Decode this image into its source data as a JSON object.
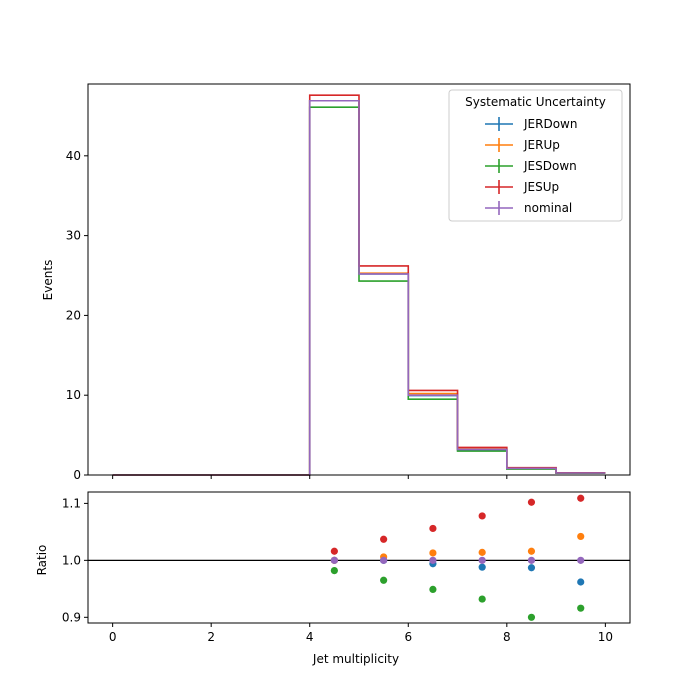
{
  "chart_data": {
    "type": "histogram_with_ratio",
    "xlabel": "Jet multiplicity",
    "top_ylabel": "Events",
    "bottom_ylabel": "Ratio",
    "xlim": [
      -0.5,
      10.5
    ],
    "top_ylim": [
      0,
      49
    ],
    "bottom_ylim": [
      0.89,
      1.12
    ],
    "x_ticks": [
      0,
      2,
      4,
      6,
      8,
      10
    ],
    "top_y_ticks": [
      0,
      10,
      20,
      30,
      40
    ],
    "bottom_y_ticks": [
      0.9,
      1.0,
      1.1
    ],
    "bin_edges": [
      0,
      1,
      2,
      3,
      4,
      5,
      6,
      7,
      8,
      9,
      10
    ],
    "legend": {
      "title": "Systematic Uncertainty",
      "placement": "top-right"
    },
    "ratio_reference_line": 1.0,
    "series": [
      {
        "name": "JERDown",
        "color": "#1f77b4",
        "counts": [
          0,
          0,
          0,
          0,
          46.9,
          25.2,
          9.95,
          3.15,
          0.82,
          0.24
        ],
        "ratio_x": [
          4.5,
          5.5,
          6.5,
          7.5,
          8.5,
          9.5
        ],
        "ratio": [
          1.0,
          1.0,
          0.994,
          0.988,
          0.987,
          0.962
        ]
      },
      {
        "name": "JERUp",
        "color": "#ff7f0e",
        "counts": [
          0,
          0,
          0,
          0,
          46.9,
          25.3,
          10.2,
          3.25,
          0.85,
          0.26
        ],
        "ratio_x": [
          4.5,
          5.5,
          6.5,
          7.5,
          8.5,
          9.5
        ],
        "ratio": [
          1.0,
          1.006,
          1.013,
          1.014,
          1.016,
          1.042
        ]
      },
      {
        "name": "JESDown",
        "color": "#2ca02c",
        "counts": [
          0,
          0,
          0,
          0,
          46.1,
          24.3,
          9.5,
          3.0,
          0.75,
          0.23
        ],
        "ratio_x": [
          4.5,
          5.5,
          6.5,
          7.5,
          8.5,
          9.5
        ],
        "ratio": [
          0.982,
          0.965,
          0.949,
          0.932,
          0.9,
          0.916
        ]
      },
      {
        "name": "JESUp",
        "color": "#d62728",
        "counts": [
          0,
          0,
          0,
          0,
          47.6,
          26.2,
          10.6,
          3.45,
          0.92,
          0.28
        ],
        "ratio_x": [
          4.5,
          5.5,
          6.5,
          7.5,
          8.5,
          9.5
        ],
        "ratio": [
          1.016,
          1.037,
          1.056,
          1.078,
          1.102,
          1.109
        ]
      },
      {
        "name": "nominal",
        "color": "#9467bd",
        "counts": [
          0,
          0,
          0,
          0,
          46.9,
          25.2,
          10.0,
          3.2,
          0.84,
          0.25
        ],
        "ratio_x": [
          4.5,
          5.5,
          6.5,
          7.5,
          8.5,
          9.5
        ],
        "ratio": [
          1.0,
          1.0,
          1.0,
          1.0,
          1.0,
          1.0
        ]
      }
    ]
  }
}
